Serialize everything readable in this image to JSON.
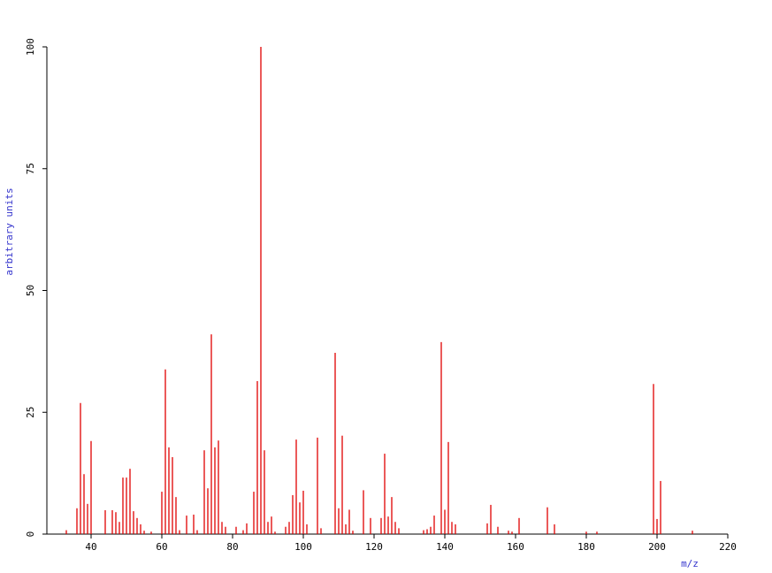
{
  "chart_data": {
    "type": "bar",
    "x_label": "m/z",
    "y_label": "arbitrary units",
    "color": "#e00000",
    "label_color": "#3333cc",
    "x": [
      33,
      36,
      37,
      38,
      39,
      40,
      44,
      46,
      47,
      48,
      49,
      50,
      51,
      52,
      53,
      54,
      55,
      57,
      60,
      61,
      62,
      63,
      64,
      65,
      67,
      69,
      70,
      72,
      73,
      74,
      75,
      76,
      77,
      78,
      81,
      83,
      84,
      86,
      87,
      88,
      89,
      90,
      91,
      92,
      95,
      96,
      97,
      98,
      99,
      100,
      101,
      104,
      105,
      109,
      110,
      111,
      112,
      113,
      114,
      117,
      119,
      122,
      123,
      124,
      125,
      126,
      127,
      134,
      135,
      136,
      137,
      139,
      140,
      141,
      142,
      143,
      152,
      153,
      155,
      158,
      159,
      161,
      169,
      171,
      180,
      183,
      199,
      200,
      201,
      210
    ],
    "values": [
      0.8,
      5.3,
      26.9,
      12.3,
      6.2,
      19.1,
      4.9,
      4.9,
      4.5,
      2.5,
      11.6,
      11.6,
      13.4,
      4.7,
      3.3,
      2,
      0.7,
      0.5,
      8.7,
      33.8,
      17.8,
      15.8,
      7.6,
      0.8,
      3.8,
      4,
      0.8,
      17.2,
      9.4,
      41,
      17.8,
      19.2,
      2.5,
      1.5,
      1.5,
      0.8,
      2.2,
      8.7,
      31.4,
      100,
      17.2,
      2.5,
      3.6,
      0.5,
      1.5,
      2.5,
      8,
      19.4,
      6.5,
      8.9,
      2,
      19.8,
      1.2,
      37.2,
      5.3,
      20.2,
      2,
      5,
      0.7,
      9,
      3.3,
      3.3,
      16.5,
      3.6,
      7.6,
      2.5,
      1.2,
      0.8,
      1,
      1.5,
      3.8,
      39.4,
      5,
      18.9,
      2.5,
      2,
      2.2,
      6,
      1.5,
      0.7,
      0.5,
      3.3,
      5.5,
      2,
      0.5,
      0.5,
      30.8,
      3.1,
      10.9,
      0.7
    ],
    "xlim": [
      27.5,
      220
    ],
    "xticks": [
      40,
      60,
      80,
      100,
      120,
      140,
      160,
      180,
      200,
      220
    ],
    "ylim": [
      0,
      100
    ],
    "yticks": [
      0,
      25,
      50,
      75,
      100
    ]
  }
}
